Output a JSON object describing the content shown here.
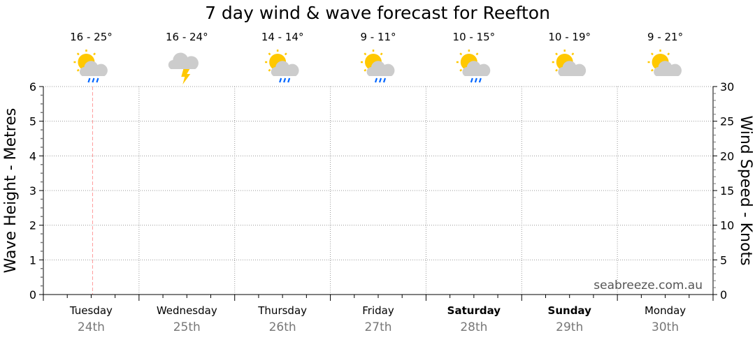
{
  "chart_data": {
    "type": "line",
    "title": "7 day wind & wave forecast for Reefton",
    "ylabel_left": "Wave Height - Metres",
    "ylabel_right": "Wind Speed - Knots",
    "ylim_left": [
      0,
      6
    ],
    "ylim_right": [
      0,
      30
    ],
    "left_ticks": [
      "0",
      "1",
      "2",
      "3",
      "4",
      "5",
      "6"
    ],
    "right_ticks": [
      "0",
      "5",
      "10",
      "15",
      "20",
      "25",
      "30"
    ],
    "grid": true,
    "current_time_marker": "Tuesday 24th midday",
    "series": [],
    "days": [
      {
        "day": "Tuesday",
        "date": "24th",
        "temp": "16 - 25°",
        "icon": "sun-cloud-rain",
        "bold": false
      },
      {
        "day": "Wednesday",
        "date": "25th",
        "temp": "16 - 24°",
        "icon": "storm",
        "bold": false
      },
      {
        "day": "Thursday",
        "date": "26th",
        "temp": "14 - 14°",
        "icon": "sun-cloud-rain",
        "bold": false
      },
      {
        "day": "Friday",
        "date": "27th",
        "temp": "9 - 11°",
        "icon": "sun-cloud-rain",
        "bold": false
      },
      {
        "day": "Saturday",
        "date": "28th",
        "temp": "10 - 15°",
        "icon": "sun-cloud-rain",
        "bold": true
      },
      {
        "day": "Sunday",
        "date": "29th",
        "temp": "10 - 19°",
        "icon": "sun-cloud",
        "bold": true
      },
      {
        "day": "Monday",
        "date": "30th",
        "temp": "9 - 21°",
        "icon": "sun-cloud",
        "bold": false
      }
    ]
  },
  "watermark": "seabreeze.com.au",
  "colors": {
    "sun": "#ffc800",
    "cloud": "#cccccc",
    "rain": "#0066ff",
    "marker": "#ff9999",
    "grid": "#999999"
  }
}
